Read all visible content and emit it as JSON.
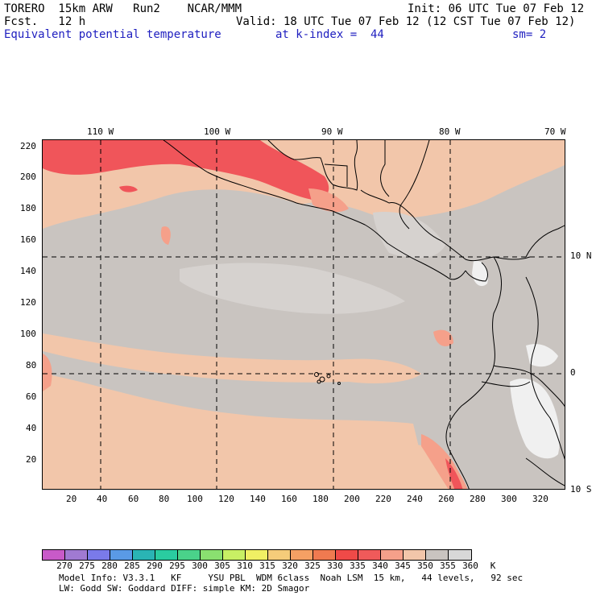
{
  "header": {
    "line1_left": "TORERO  15km ARW   Run2    NCAR/MMM",
    "line1_right": "Init: 06 UTC Tue 07 Feb 12",
    "line2_left": "Fcst.   12 h",
    "line2_right": "Valid: 18 UTC Tue 07 Feb 12 (12 CST Tue 07 Feb 12)",
    "field_name": "Equivalent potential temperature",
    "level": "at k-index =  44",
    "smoothing": "sm= 2"
  },
  "map": {
    "lon_labels": [
      "110 W",
      "100 W",
      "90 W",
      "80 W",
      "70 W"
    ],
    "lat_labels": [
      "10 N",
      "0",
      "10 S"
    ],
    "y_ticks": [
      "220",
      "200",
      "180",
      "160",
      "140",
      "120",
      "100",
      "80",
      "60",
      "40",
      "20"
    ],
    "x_ticks": [
      "20",
      "40",
      "60",
      "80",
      "100",
      "120",
      "140",
      "160",
      "180",
      "200",
      "220",
      "240",
      "260",
      "280",
      "300",
      "320"
    ],
    "colors": {
      "background": "#f2c6aa",
      "gray": "#c9c4c0",
      "light_gray": "#dcdcdc",
      "red": "#f0555a",
      "light_red": "#f5a08a",
      "white": "#f5f5f5"
    }
  },
  "colorbar": {
    "colors": [
      "#c85ac8",
      "#a07ad2",
      "#7a7aea",
      "#5a9ae6",
      "#2ab4b4",
      "#2acca0",
      "#4ad28a",
      "#8ae070",
      "#c8f064",
      "#f0f064",
      "#f5cc7a",
      "#f5a064",
      "#f07a50",
      "#f04a48",
      "#f05a5a",
      "#f5a08a",
      "#f2c6aa",
      "#c9c4c0",
      "#d8d8d8",
      "#ffffff"
    ],
    "labels": [
      "270",
      "275",
      "280",
      "285",
      "290",
      "295",
      "300",
      "305",
      "310",
      "315",
      "320",
      "325",
      "330",
      "335",
      "340",
      "345",
      "350",
      "355",
      "360",
      "K"
    ]
  },
  "footer": {
    "line1": "Model Info: V3.3.1   KF     YSU PBL  WDM 6class  Noah LSM  15 km,   44 levels,   92 sec",
    "line2": "LW: Godd SW: Goddard DIFF: simple KM: 2D Smagor"
  }
}
